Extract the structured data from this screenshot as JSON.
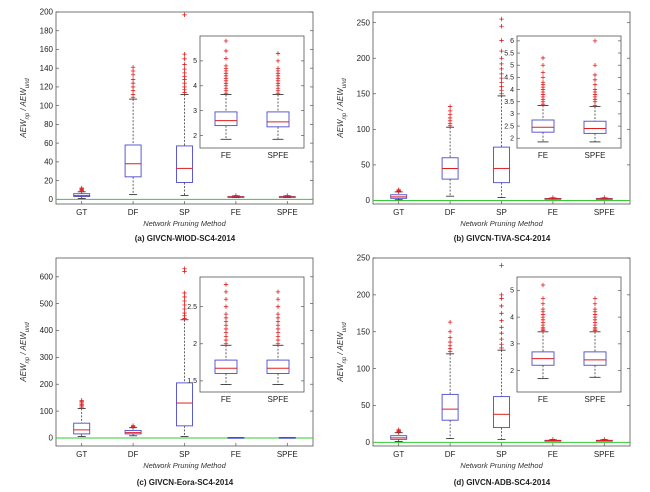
{
  "chart_data": [
    {
      "type": "box",
      "caption": "(a) GIVCN-WIOD-SC4-2014",
      "xlabel": "Network Pruning Method",
      "ylabel_main": "AEW",
      "ylabel_sub1": "np",
      "ylabel_mid": " / AEW",
      "ylabel_sub2": "und",
      "categories": [
        "GT",
        "DF",
        "SP",
        "FE",
        "SPFE"
      ],
      "ylim": [
        -5,
        200
      ],
      "yticks": [
        "0",
        "20",
        "40",
        "60",
        "80",
        "100",
        "120",
        "140",
        "160",
        "180",
        "200"
      ],
      "reference_line": 0,
      "boxes": [
        {
          "name": "GT",
          "min": 1,
          "q1": 3,
          "median": 4,
          "q3": 6,
          "max": 8,
          "outliers": [
            9,
            10,
            11,
            12
          ]
        },
        {
          "name": "DF",
          "min": 5,
          "q1": 24,
          "median": 38,
          "q3": 58,
          "max": 107,
          "outliers": [
            109,
            112,
            116,
            120,
            124,
            128,
            133,
            137,
            141
          ]
        },
        {
          "name": "SP",
          "min": 4,
          "q1": 18,
          "median": 33,
          "q3": 57,
          "max": 112,
          "outliers": [
            114,
            117,
            120,
            124,
            128,
            131,
            135,
            139,
            144,
            150,
            155,
            197
          ]
        },
        {
          "name": "FE",
          "min": 1.8,
          "q1": 2.4,
          "median": 2.6,
          "q3": 2.9,
          "max": 3.6,
          "outliers": [
            4
          ]
        },
        {
          "name": "SPFE",
          "min": 1.8,
          "q1": 2.3,
          "median": 2.6,
          "q3": 2.9,
          "max": 3.6,
          "outliers": [
            4
          ]
        }
      ],
      "inset": {
        "categories": [
          "FE",
          "SPFE"
        ],
        "ylim": [
          1.5,
          6
        ],
        "yticks": [
          "2",
          "3",
          "4",
          "5"
        ],
        "boxes": [
          {
            "name": "FE",
            "min": 1.85,
            "q1": 2.4,
            "median": 2.6,
            "q3": 2.95,
            "max": 3.65,
            "outliers": [
              3.7,
              3.8,
              3.9,
              4.0,
              4.1,
              4.2,
              4.3,
              4.4,
              4.5,
              4.6,
              4.7,
              4.8,
              5.1,
              5.4,
              5.8
            ]
          },
          {
            "name": "SPFE",
            "min": 1.85,
            "q1": 2.35,
            "median": 2.55,
            "q3": 2.95,
            "max": 3.65,
            "outliers": [
              3.7,
              3.8,
              3.9,
              4.0,
              4.1,
              4.2,
              4.3,
              4.4,
              4.5,
              4.6,
              4.7,
              5.0,
              5.3
            ]
          }
        ]
      }
    },
    {
      "type": "box",
      "caption": "(b) GIVCN-TiVA-SC4-2014",
      "xlabel": "Network Pruning Method",
      "ylabel_main": "AEW",
      "ylabel_sub1": "np",
      "ylabel_mid": " / AEW",
      "ylabel_sub2": "und",
      "categories": [
        "GT",
        "DF",
        "SP",
        "FE",
        "SPFE"
      ],
      "ylim": [
        -5,
        265
      ],
      "yticks": [
        "0",
        "50",
        "100",
        "150",
        "200",
        "250"
      ],
      "reference_line": 0,
      "boxes": [
        {
          "name": "GT",
          "min": 1,
          "q1": 3,
          "median": 5,
          "q3": 8,
          "max": 12,
          "outliers": [
            13,
            14,
            15
          ]
        },
        {
          "name": "DF",
          "min": 6,
          "q1": 30,
          "median": 45,
          "q3": 60,
          "max": 103,
          "outliers": [
            105,
            108,
            112,
            116,
            121,
            126,
            132
          ]
        },
        {
          "name": "SP",
          "min": 4,
          "q1": 25,
          "median": 45,
          "q3": 75,
          "max": 147,
          "outliers": [
            150,
            155,
            160,
            166,
            172,
            178,
            185,
            192,
            200,
            210,
            225,
            245,
            255
          ]
        },
        {
          "name": "FE",
          "min": 1.8,
          "q1": 2.3,
          "median": 2.5,
          "q3": 2.8,
          "max": 3.3,
          "outliers": [
            4
          ]
        },
        {
          "name": "SPFE",
          "min": 1.8,
          "q1": 2.2,
          "median": 2.4,
          "q3": 2.7,
          "max": 3.3,
          "outliers": [
            4
          ]
        }
      ],
      "inset": {
        "categories": [
          "FE",
          "SPFE"
        ],
        "ylim": [
          1.6,
          6.2
        ],
        "yticks": [
          "2",
          "2.5",
          "3",
          "3.5",
          "4",
          "4.5",
          "5",
          "5.5",
          "6"
        ],
        "boxes": [
          {
            "name": "FE",
            "min": 1.85,
            "q1": 2.25,
            "median": 2.45,
            "q3": 2.75,
            "max": 3.35,
            "outliers": [
              3.4,
              3.5,
              3.6,
              3.7,
              3.8,
              3.9,
              4.0,
              4.1,
              4.2,
              4.3,
              4.5,
              4.7,
              5.0,
              5.3
            ]
          },
          {
            "name": "SPFE",
            "min": 1.85,
            "q1": 2.2,
            "median": 2.4,
            "q3": 2.7,
            "max": 3.3,
            "outliers": [
              3.35,
              3.5,
              3.6,
              3.7,
              3.8,
              3.9,
              4.0,
              4.2,
              4.4,
              4.6,
              5.0,
              6.0
            ]
          }
        ]
      }
    },
    {
      "type": "box",
      "caption": "(c) GIVCN-Eora-SC4-2014",
      "xlabel": "Network Pruning Method",
      "ylabel_main": "AEW",
      "ylabel_sub1": "np",
      "ylabel_mid": " / AEW",
      "ylabel_sub2": "und",
      "categories": [
        "GT",
        "DF",
        "SP",
        "FE",
        "SPFE"
      ],
      "ylim": [
        -30,
        670
      ],
      "yticks": [
        "0",
        "100",
        "200",
        "300",
        "400",
        "500",
        "600"
      ],
      "reference_line": 0,
      "boxes": [
        {
          "name": "GT",
          "min": 5,
          "q1": 15,
          "median": 30,
          "q3": 55,
          "max": 110,
          "outliers": [
            115,
            120,
            125,
            130,
            135,
            140
          ]
        },
        {
          "name": "DF",
          "min": 8,
          "q1": 15,
          "median": 20,
          "q3": 28,
          "max": 38,
          "outliers": [
            40,
            43,
            46
          ]
        },
        {
          "name": "SP",
          "min": 5,
          "q1": 45,
          "median": 130,
          "q3": 205,
          "max": 440,
          "outliers": [
            445,
            455,
            465,
            480,
            495,
            510,
            525,
            540,
            620,
            630
          ]
        },
        {
          "name": "FE",
          "min": 1.4,
          "q1": 1.6,
          "median": 1.7,
          "q3": 1.8,
          "max": 2.0,
          "outliers": []
        },
        {
          "name": "SPFE",
          "min": 1.4,
          "q1": 1.6,
          "median": 1.7,
          "q3": 1.8,
          "max": 2.0,
          "outliers": []
        }
      ],
      "inset": {
        "categories": [
          "FE",
          "SPFE"
        ],
        "ylim": [
          1.35,
          2.9
        ],
        "yticks": [
          "1.5",
          "2",
          "2.5"
        ],
        "boxes": [
          {
            "name": "FE",
            "min": 1.45,
            "q1": 1.6,
            "median": 1.67,
            "q3": 1.78,
            "max": 1.98,
            "outliers": [
              2.0,
              2.05,
              2.1,
              2.15,
              2.2,
              2.25,
              2.3,
              2.35,
              2.4,
              2.5,
              2.6,
              2.7,
              2.8
            ]
          },
          {
            "name": "SPFE",
            "min": 1.45,
            "q1": 1.6,
            "median": 1.67,
            "q3": 1.78,
            "max": 1.98,
            "outliers": [
              2.0,
              2.05,
              2.1,
              2.15,
              2.2,
              2.25,
              2.3,
              2.35,
              2.4,
              2.5,
              2.6,
              2.7
            ]
          }
        ]
      }
    },
    {
      "type": "box",
      "caption": "(d) GIVCN-ADB-SC4-2014",
      "xlabel": "Network Pruning Method",
      "ylabel_main": "AEW",
      "ylabel_sub1": "np",
      "ylabel_mid": " / AEW",
      "ylabel_sub2": "und",
      "categories": [
        "GT",
        "DF",
        "SP",
        "FE",
        "SPFE"
      ],
      "ylim": [
        -5,
        250
      ],
      "yticks": [
        "0",
        "50",
        "100",
        "150",
        "200",
        "250"
      ],
      "reference_line": 0,
      "boxes": [
        {
          "name": "GT",
          "min": 1,
          "q1": 4,
          "median": 6,
          "q3": 9,
          "max": 13,
          "outliers": [
            14,
            15,
            16,
            17
          ]
        },
        {
          "name": "DF",
          "min": 5,
          "q1": 30,
          "median": 45,
          "q3": 65,
          "max": 120,
          "outliers": [
            123,
            127,
            131,
            136,
            142,
            150,
            163
          ]
        },
        {
          "name": "SP",
          "min": 4,
          "q1": 20,
          "median": 38,
          "q3": 62,
          "max": 125,
          "outliers": [
            128,
            133,
            140,
            148,
            156,
            165,
            175,
            185,
            195,
            200,
            240
          ]
        },
        {
          "name": "FE",
          "min": 1.7,
          "q1": 2.2,
          "median": 2.4,
          "q3": 2.7,
          "max": 3.4,
          "outliers": [
            4
          ]
        },
        {
          "name": "SPFE",
          "min": 1.7,
          "q1": 2.2,
          "median": 2.4,
          "q3": 2.7,
          "max": 3.4,
          "outliers": [
            4
          ]
        }
      ],
      "inset": {
        "categories": [
          "FE",
          "SPFE"
        ],
        "ylim": [
          1.2,
          5.5
        ],
        "yticks": [
          "2",
          "3",
          "4",
          "5"
        ],
        "boxes": [
          {
            "name": "FE",
            "min": 1.7,
            "q1": 2.2,
            "median": 2.45,
            "q3": 2.7,
            "max": 3.45,
            "outliers": [
              3.5,
              3.55,
              3.6,
              3.7,
              3.8,
              3.9,
              4.0,
              4.1,
              4.2,
              4.3,
              4.5,
              4.7,
              5.2
            ]
          },
          {
            "name": "SPFE",
            "min": 1.75,
            "q1": 2.2,
            "median": 2.4,
            "q3": 2.7,
            "max": 3.45,
            "outliers": [
              3.5,
              3.55,
              3.6,
              3.7,
              3.8,
              3.9,
              4.0,
              4.1,
              4.2,
              4.3,
              4.5,
              4.7
            ]
          }
        ]
      }
    }
  ],
  "colors": {
    "box": "#4a4ad0",
    "median": "#e02020",
    "outlier": "#e02020",
    "whisker": "#222222",
    "reference_line": "#33cc33",
    "axis": "#555555"
  }
}
